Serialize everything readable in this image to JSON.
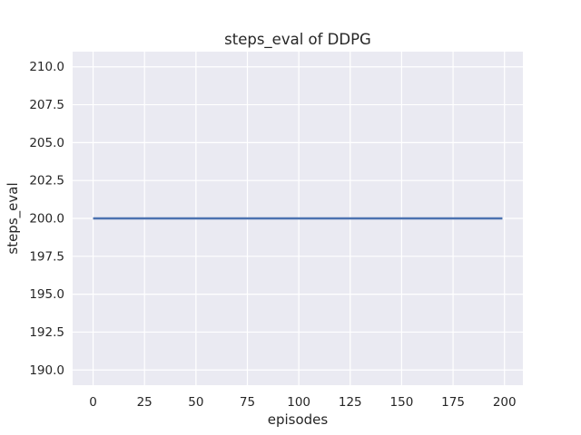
{
  "chart_data": {
    "type": "line",
    "title": "steps_eval of DDPG",
    "xlabel": "episodes",
    "ylabel": "steps_eval",
    "xlim": [
      -9.95,
      208.95
    ],
    "ylim": [
      189,
      211
    ],
    "xticks": [
      0,
      25,
      50,
      75,
      100,
      125,
      150,
      175,
      200
    ],
    "xtick_labels": [
      "0",
      "25",
      "50",
      "75",
      "100",
      "125",
      "150",
      "175",
      "200"
    ],
    "yticks": [
      190.0,
      192.5,
      195.0,
      197.5,
      200.0,
      202.5,
      205.0,
      207.5,
      210.0
    ],
    "ytick_labels": [
      "190.0",
      "192.5",
      "195.0",
      "197.5",
      "200.0",
      "202.5",
      "205.0",
      "207.5",
      "210.0"
    ],
    "grid": true,
    "legend_position": "none",
    "series": [
      {
        "name": "DDPG",
        "x": [
          0,
          199
        ],
        "y": [
          200,
          200
        ],
        "color": "#4c72b0"
      }
    ],
    "colors": {
      "figure_bg": "#ffffff",
      "plot_bg": "#eaeaf2",
      "grid": "#ffffff",
      "text": "#262626",
      "line": "#4c72b0"
    }
  }
}
